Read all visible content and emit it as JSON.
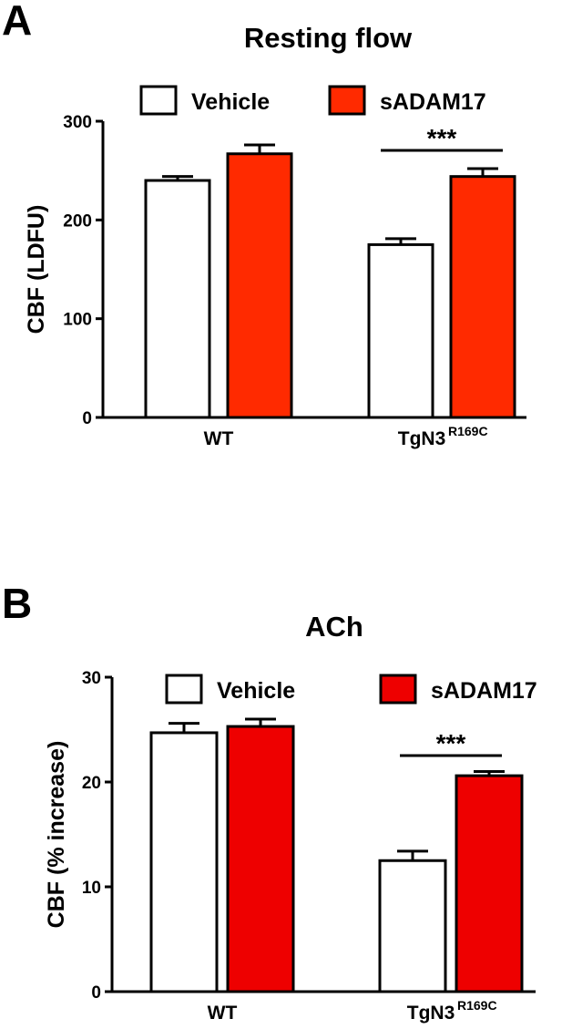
{
  "chart_data": [
    {
      "type": "bar",
      "panel": "A",
      "title": "Resting flow",
      "ylabel": "CBF (LDFU)",
      "xlabel": "",
      "ylim": [
        0,
        300
      ],
      "yticks": [
        0,
        100,
        200,
        300
      ],
      "categories": [
        {
          "label": "WT",
          "sup": ""
        },
        {
          "label": "TgN3",
          "sup": "R169C"
        }
      ],
      "series": [
        {
          "name": "Vehicle",
          "color": "#ffffff",
          "values": [
            240,
            175
          ],
          "errors": [
            4,
            6
          ]
        },
        {
          "name": "sADAM17",
          "color": "#ff2a00",
          "values": [
            267,
            244
          ],
          "errors": [
            9,
            8
          ]
        }
      ],
      "significance": [
        {
          "category": 1,
          "label": "***"
        }
      ],
      "legend_position": "top",
      "grid": false
    },
    {
      "type": "bar",
      "panel": "B",
      "title": "ACh",
      "ylabel": "CBF (% increase)",
      "xlabel": "",
      "ylim": [
        0,
        30
      ],
      "yticks": [
        0,
        10,
        20,
        30
      ],
      "categories": [
        {
          "label": "WT",
          "sup": ""
        },
        {
          "label": "TgN3",
          "sup": "R169C"
        }
      ],
      "series": [
        {
          "name": "Vehicle",
          "color": "#ffffff",
          "values": [
            24.7,
            12.5
          ],
          "errors": [
            0.9,
            0.9
          ]
        },
        {
          "name": "sADAM17",
          "color": "#ee0000",
          "values": [
            25.3,
            20.6
          ],
          "errors": [
            0.7,
            0.4
          ]
        }
      ],
      "significance": [
        {
          "category": 1,
          "label": "***"
        }
      ],
      "legend_position": "top",
      "grid": false
    }
  ]
}
